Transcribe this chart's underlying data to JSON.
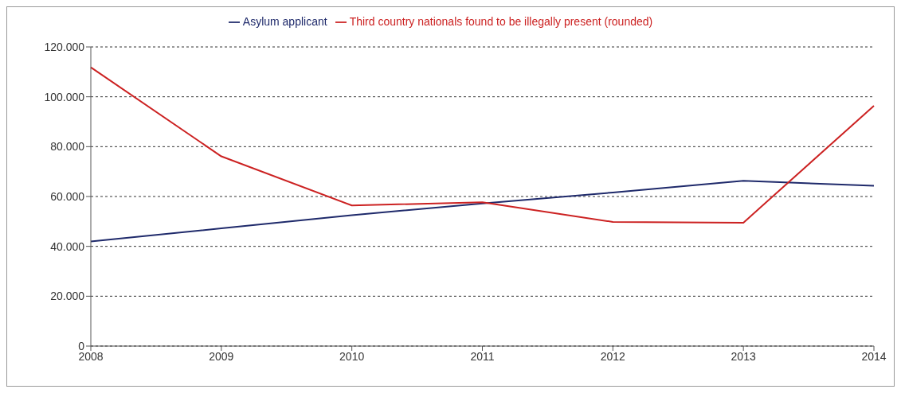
{
  "chart_data": {
    "type": "line",
    "categories": [
      "2008",
      "2009",
      "2010",
      "2011",
      "2012",
      "2013",
      "2014"
    ],
    "series": [
      {
        "name": "Asylum applicant",
        "color": "#1f2a6b",
        "values": [
          42000,
          47200,
          52500,
          57200,
          61600,
          66300,
          64300
        ]
      },
      {
        "name": "Third country nationals found to be illegally present (rounded)",
        "color": "#cc2222",
        "values": [
          111800,
          76100,
          56400,
          57700,
          49800,
          49500,
          96400
        ]
      }
    ],
    "ylim": [
      0,
      120000
    ],
    "yticks": [
      {
        "value": 0,
        "label": "0"
      },
      {
        "value": 20000,
        "label": "20.000"
      },
      {
        "value": 40000,
        "label": "40.000"
      },
      {
        "value": 60000,
        "label": "60.000"
      },
      {
        "value": 80000,
        "label": "80.000"
      },
      {
        "value": 100000,
        "label": "100.000"
      },
      {
        "value": 120000,
        "label": "120.000"
      }
    ],
    "grid": "y",
    "legend": "top",
    "marker": "none",
    "line_style": "solid"
  }
}
